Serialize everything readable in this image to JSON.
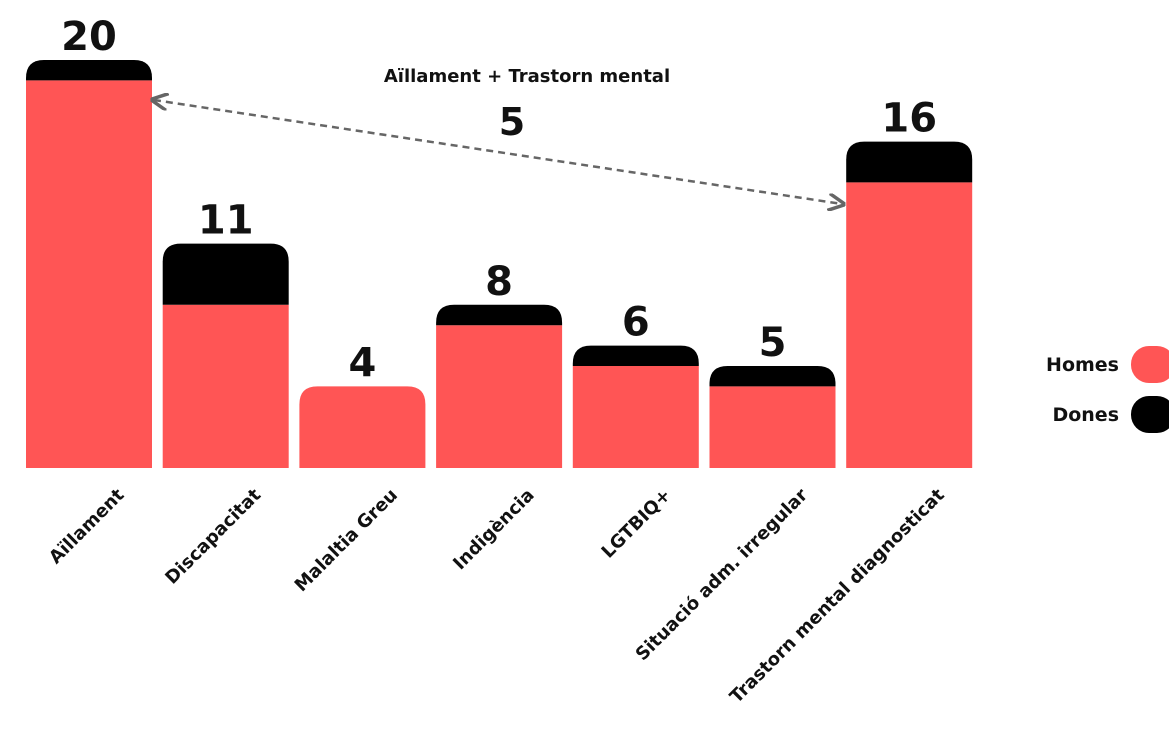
{
  "chart_data": {
    "type": "bar",
    "stacked": true,
    "categories": [
      "Aïllament",
      "Discapacitat",
      "Malaltia Greu",
      "Indigència",
      "LGTBIQ+",
      "Situació adm. irregular",
      "Trastorn mental diagnosticat"
    ],
    "series": [
      {
        "name": "Homes",
        "color": "#ff5555",
        "values": [
          19,
          8,
          4,
          7,
          5,
          4,
          14
        ]
      },
      {
        "name": "Dones",
        "color": "#000000",
        "values": [
          1,
          3,
          0,
          1,
          1,
          1,
          2
        ]
      }
    ],
    "totals": [
      20,
      11,
      4,
      8,
      6,
      5,
      16
    ],
    "legend": {
      "position": "right",
      "entries": [
        "Homes",
        "Dones"
      ]
    },
    "annotation": {
      "title": "Aïllament + Trastorn mental",
      "value": "5",
      "from": "Aïllament",
      "to": "Trastorn mental diagnosticat",
      "line_color": "#666666"
    },
    "ylim": [
      0,
      20
    ],
    "grid": false
  }
}
